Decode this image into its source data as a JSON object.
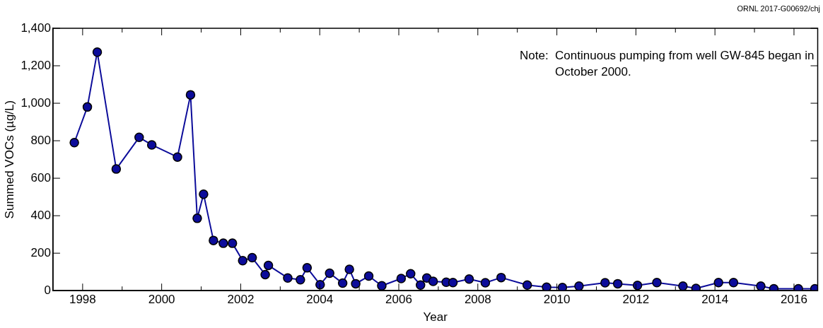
{
  "chart_data": {
    "type": "line",
    "xlabel": "Year",
    "ylabel": "Summed VOCs (µg/L)",
    "annotations": [
      "Note:  Continuous pumping from well GW-845 began in October 2000.",
      "ORNL 2017-G00692/chj"
    ],
    "x": [
      1997.79,
      1998.12,
      1998.37,
      1998.85,
      1999.43,
      1999.75,
      2000.4,
      2000.73,
      2000.9,
      2001.06,
      2001.31,
      2001.56,
      2001.79,
      2002.05,
      2002.29,
      2002.62,
      2002.7,
      2003.19,
      2003.51,
      2003.68,
      2004.01,
      2004.25,
      2004.58,
      2004.75,
      2004.91,
      2005.24,
      2005.57,
      2006.06,
      2006.3,
      2006.55,
      2006.71,
      2006.87,
      2007.2,
      2007.37,
      2007.78,
      2008.19,
      2008.59,
      2009.25,
      2009.74,
      2010.14,
      2010.56,
      2011.22,
      2011.54,
      2012.04,
      2012.53,
      2013.19,
      2013.52,
      2014.09,
      2014.47,
      2015.16,
      2015.49,
      2016.11,
      2016.53
    ],
    "series": [
      {
        "color": "#0c0c9a",
        "values": [
          790,
          980,
          1273,
          649,
          818,
          778,
          713,
          1045,
          386,
          515,
          268,
          253,
          253,
          160,
          176,
          86,
          135,
          68,
          58,
          122,
          32,
          93,
          40,
          114,
          37,
          78,
          26,
          65,
          90,
          30,
          68,
          50,
          45,
          43,
          62,
          42,
          70,
          30,
          19,
          17,
          24,
          42,
          37,
          28,
          43,
          24,
          12,
          43,
          43,
          24,
          10,
          10,
          10
        ]
      }
    ],
    "xlim": [
      1997.25,
      2016.6
    ],
    "xticks": [
      {
        "value": 1998,
        "label": "1998"
      },
      {
        "value": 1999,
        "label": null
      },
      {
        "value": 2000,
        "label": "2000"
      },
      {
        "value": 2001,
        "label": null
      },
      {
        "value": 2002,
        "label": "2002"
      },
      {
        "value": 2003,
        "label": null
      },
      {
        "value": 2004,
        "label": "2004"
      },
      {
        "value": 2005,
        "label": null
      },
      {
        "value": 2006,
        "label": "2006"
      },
      {
        "value": 2007,
        "label": null
      },
      {
        "value": 2008,
        "label": "2008"
      },
      {
        "value": 2009,
        "label": null
      },
      {
        "value": 2010,
        "label": "2010"
      },
      {
        "value": 2011,
        "label": null
      },
      {
        "value": 2012,
        "label": "2012"
      },
      {
        "value": 2013,
        "label": null
      },
      {
        "value": 2014,
        "label": "2014"
      },
      {
        "value": 2015,
        "label": null
      },
      {
        "value": 2016,
        "label": "2016"
      }
    ],
    "ylim": [
      0,
      1400
    ],
    "yticks": [
      0,
      200,
      400,
      600,
      800,
      {
        "value": 1000,
        "label": "1,000"
      },
      {
        "value": 1200,
        "label": "1,200"
      },
      {
        "value": 1400,
        "label": "1,400"
      }
    ],
    "grid": false,
    "legend": false,
    "marker": "circle",
    "line_style": "solid"
  }
}
